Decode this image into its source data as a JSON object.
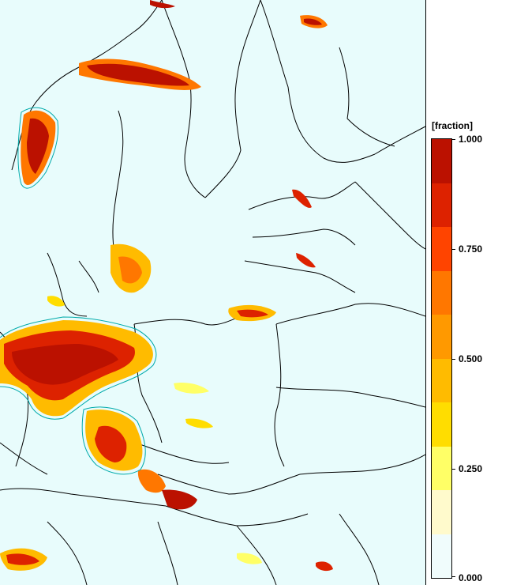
{
  "legend": {
    "title": "[fraction]",
    "ticks": [
      "1.000",
      "0.750",
      "0.500",
      "0.250",
      "0.000"
    ],
    "tick_values": [
      1.0,
      0.75,
      0.5,
      0.25,
      0.0
    ],
    "colors": [
      "#f0fcfc",
      "#fffacc",
      "#ffff66",
      "#ffdd00",
      "#ffbb00",
      "#ff9900",
      "#ff7700",
      "#ff4400",
      "#dd2200",
      "#bb1100"
    ]
  },
  "map": {
    "background_color": "#e8fcfc",
    "border_color": "#000000",
    "contour_color": "#00aaaa"
  }
}
